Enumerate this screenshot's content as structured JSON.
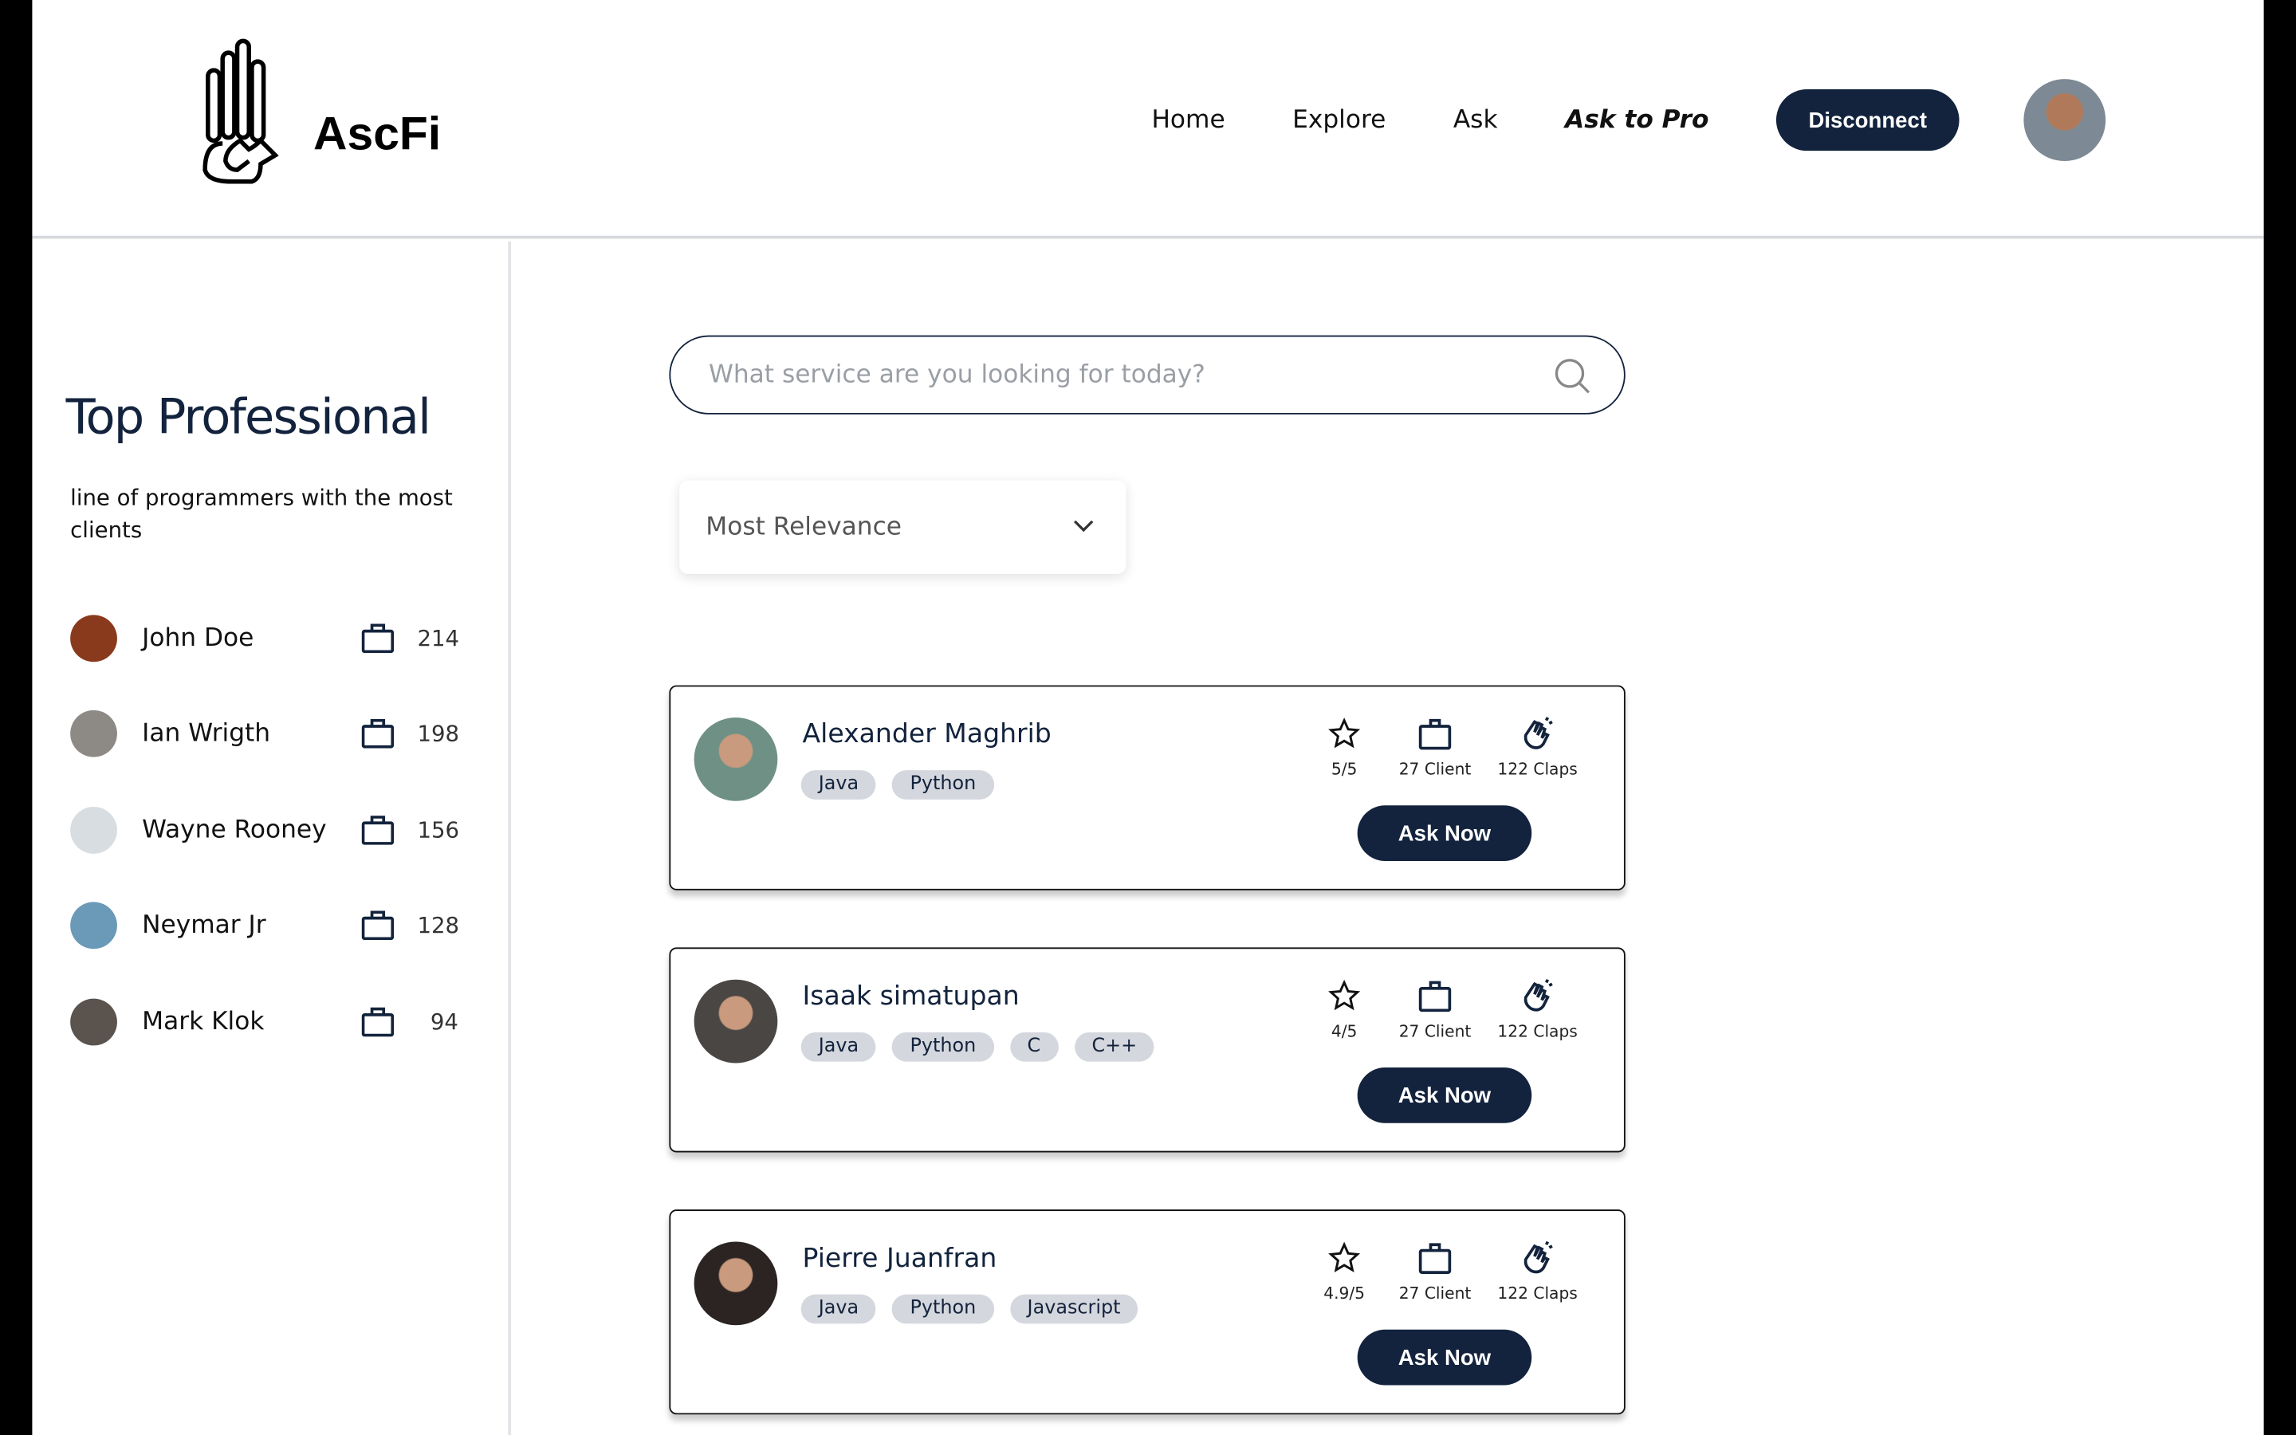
{
  "header": {
    "logo_text": "AscFi",
    "nav": [
      "Home",
      "Explore",
      "Ask",
      "Ask to Pro"
    ],
    "disconnect": "Disconnect"
  },
  "sidebar": {
    "title": "Top Professional",
    "subtitle": "line of programmers with the most clients",
    "items": [
      {
        "name": "John Doe",
        "count": "214",
        "color": "#8a3a1c"
      },
      {
        "name": "Ian Wrigth",
        "count": "198",
        "color": "#8d8a86"
      },
      {
        "name": "Wayne Rooney",
        "count": "156",
        "color": "#d8dde2"
      },
      {
        "name": "Neymar Jr",
        "count": "128",
        "color": "#6a9ab8"
      },
      {
        "name": "Mark Klok",
        "count": "94",
        "color": "#5a534e"
      }
    ]
  },
  "search": {
    "placeholder": "What service are you looking for today?"
  },
  "sort": {
    "selected": "Most Relevance"
  },
  "cards": [
    {
      "name": "Alexander Maghrib",
      "tags": [
        "Java",
        "Python"
      ],
      "rating": "5/5",
      "clients": "27 Client",
      "claps": "122 Claps",
      "button": "Ask Now",
      "color": "#6f9085"
    },
    {
      "name": "Isaak simatupan",
      "tags": [
        "Java",
        "Python",
        "C",
        "C++"
      ],
      "rating": "4/5",
      "clients": "27 Client",
      "claps": "122 Claps",
      "button": "Ask Now",
      "color": "#4a4644"
    },
    {
      "name": "Pierre Juanfran",
      "tags": [
        "Java",
        "Python",
        "Javascript"
      ],
      "rating": "4.9/5",
      "clients": "27 Client",
      "claps": "122 Claps",
      "button": "Ask Now",
      "color": "#2c2422"
    }
  ],
  "colors": {
    "primary": "#13233d",
    "tag": "#d4d7dd"
  }
}
